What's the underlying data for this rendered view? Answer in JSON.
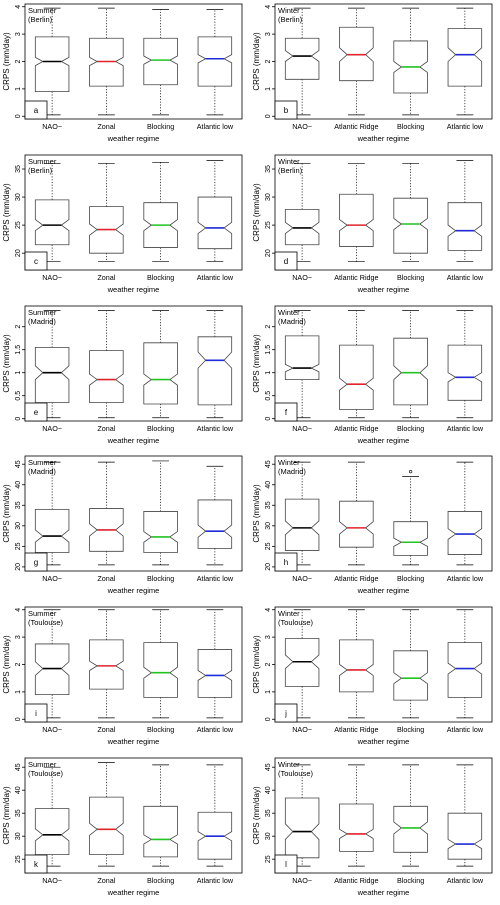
{
  "colors": {
    "median_default": "#000000",
    "median_red": "#e0242a",
    "median_green": "#22c322",
    "median_blue": "#1f2bd6",
    "box_stroke": "#444444"
  },
  "chart_data": [
    {
      "type": "boxplot",
      "panel": "a",
      "title": "Summer\n(Berlin)",
      "xlabel": "weather regime",
      "ylabel": "CRPS (mm/day)",
      "yticks": [
        0,
        1,
        2,
        3,
        4
      ],
      "ylim": [
        -0.1,
        4.1
      ],
      "categories": [
        "NAO−",
        "Zonal",
        "Blocking",
        "Atlantic low"
      ],
      "median_colors": [
        "black",
        "red",
        "green",
        "blue"
      ],
      "boxes": [
        {
          "min": 0.05,
          "q1": 0.9,
          "notch_lo": 1.85,
          "median": 2.0,
          "notch_hi": 2.15,
          "q3": 2.9,
          "max": 3.95
        },
        {
          "min": 0.05,
          "q1": 1.1,
          "notch_lo": 1.85,
          "median": 2.0,
          "notch_hi": 2.15,
          "q3": 2.85,
          "max": 3.95
        },
        {
          "min": 0.05,
          "q1": 1.15,
          "notch_lo": 1.9,
          "median": 2.05,
          "notch_hi": 2.2,
          "q3": 2.85,
          "max": 3.9
        },
        {
          "min": 0.05,
          "q1": 1.1,
          "notch_lo": 1.95,
          "median": 2.1,
          "notch_hi": 2.25,
          "q3": 2.9,
          "max": 3.9
        }
      ]
    },
    {
      "type": "boxplot",
      "panel": "b",
      "title": "Winter\n(Berlin)",
      "xlabel": "weather regime",
      "ylabel": "CRPS (mm/day)",
      "yticks": [
        0,
        1,
        2,
        3,
        4
      ],
      "ylim": [
        -0.1,
        4.1
      ],
      "categories": [
        "NAO−",
        "Atlantic Ridge",
        "Blocking",
        "Atlantic low"
      ],
      "median_colors": [
        "black",
        "red",
        "green",
        "blue"
      ],
      "boxes": [
        {
          "min": 0.05,
          "q1": 1.35,
          "notch_lo": 2.0,
          "median": 2.2,
          "notch_hi": 2.4,
          "q3": 2.85,
          "max": 3.95
        },
        {
          "min": 0.05,
          "q1": 1.3,
          "notch_lo": 2.0,
          "median": 2.25,
          "notch_hi": 2.5,
          "q3": 3.25,
          "max": 3.95
        },
        {
          "min": 0.05,
          "q1": 0.85,
          "notch_lo": 1.6,
          "median": 1.8,
          "notch_hi": 2.0,
          "q3": 2.75,
          "max": 3.95
        },
        {
          "min": 0.05,
          "q1": 1.1,
          "notch_lo": 2.0,
          "median": 2.25,
          "notch_hi": 2.5,
          "q3": 3.2,
          "max": 3.95
        }
      ]
    },
    {
      "type": "boxplot",
      "panel": "c",
      "title": "Summer\n(Berlin)",
      "xlabel": "weather regime",
      "ylabel": "CRPS (mm/day)",
      "yticks": [
        20,
        25,
        30,
        35
      ],
      "ylim": [
        17,
        37.5
      ],
      "categories": [
        "NAO−",
        "Zonal",
        "Blocking",
        "Atlantic low"
      ],
      "median_colors": [
        "black",
        "red",
        "green",
        "blue"
      ],
      "boxes": [
        {
          "min": 18.5,
          "q1": 21.5,
          "notch_lo": 24.0,
          "median": 25.0,
          "notch_hi": 26.0,
          "q3": 29.5,
          "max": 36.0
        },
        {
          "min": 18.5,
          "q1": 20.0,
          "notch_lo": 23.2,
          "median": 24.2,
          "notch_hi": 25.2,
          "q3": 28.3,
          "max": 36.0
        },
        {
          "min": 18.5,
          "q1": 21.0,
          "notch_lo": 24.0,
          "median": 25.0,
          "notch_hi": 26.0,
          "q3": 29.0,
          "max": 36.2
        },
        {
          "min": 18.5,
          "q1": 20.8,
          "notch_lo": 23.5,
          "median": 24.5,
          "notch_hi": 25.5,
          "q3": 30.0,
          "max": 36.5
        }
      ]
    },
    {
      "type": "boxplot",
      "panel": "d",
      "title": "Winter\n(Berlin)",
      "xlabel": "weather regime",
      "ylabel": "CRPS (mm/day)",
      "yticks": [
        20,
        25,
        30,
        35
      ],
      "ylim": [
        17,
        37.5
      ],
      "categories": [
        "NAO−",
        "Atlantic Ridge",
        "Blocking",
        "Atlantic low"
      ],
      "median_colors": [
        "black",
        "red",
        "green",
        "blue"
      ],
      "boxes": [
        {
          "min": 18.5,
          "q1": 21.5,
          "notch_lo": 23.5,
          "median": 24.5,
          "notch_hi": 25.5,
          "q3": 27.8,
          "max": 36.0
        },
        {
          "min": 18.5,
          "q1": 21.2,
          "notch_lo": 24.0,
          "median": 25.0,
          "notch_hi": 26.0,
          "q3": 30.5,
          "max": 36.0
        },
        {
          "min": 18.5,
          "q1": 20.0,
          "notch_lo": 24.2,
          "median": 25.2,
          "notch_hi": 26.2,
          "q3": 29.8,
          "max": 36.0
        },
        {
          "min": 18.5,
          "q1": 20.5,
          "notch_lo": 23.0,
          "median": 24.0,
          "notch_hi": 25.0,
          "q3": 29.0,
          "max": 36.5
        }
      ]
    },
    {
      "type": "boxplot",
      "panel": "e",
      "title": "Summer\n(Madrid)",
      "xlabel": "weather regime",
      "ylabel": "CRPS (mm/day)",
      "yticks": [
        0,
        0.5,
        1.0,
        1.5,
        2.0
      ],
      "ylim": [
        -0.05,
        2.45
      ],
      "categories": [
        "NAO−",
        "Zonal",
        "Blocking",
        "Atlantic low"
      ],
      "median_colors": [
        "black",
        "red",
        "green",
        "blue"
      ],
      "boxes": [
        {
          "min": 0.02,
          "q1": 0.35,
          "notch_lo": 0.85,
          "median": 1.0,
          "notch_hi": 1.15,
          "q3": 1.55,
          "max": 2.35
        },
        {
          "min": 0.02,
          "q1": 0.35,
          "notch_lo": 0.73,
          "median": 0.85,
          "notch_hi": 0.97,
          "q3": 1.48,
          "max": 2.35
        },
        {
          "min": 0.02,
          "q1": 0.32,
          "notch_lo": 0.73,
          "median": 0.85,
          "notch_hi": 0.97,
          "q3": 1.65,
          "max": 2.35
        },
        {
          "min": 0.02,
          "q1": 0.3,
          "notch_lo": 1.1,
          "median": 1.27,
          "notch_hi": 1.45,
          "q3": 1.78,
          "max": 2.35
        }
      ]
    },
    {
      "type": "boxplot",
      "panel": "f",
      "title": "Winter\n(Madrid)",
      "xlabel": "weather regime",
      "ylabel": "CRPS (mm/day)",
      "yticks": [
        0,
        0.5,
        1.0,
        1.5,
        2.0
      ],
      "ylim": [
        -0.05,
        2.45
      ],
      "categories": [
        "NAO−",
        "Atlantic Ridge",
        "Blocking",
        "Atlantic low"
      ],
      "median_colors": [
        "black",
        "red",
        "green",
        "blue"
      ],
      "boxes": [
        {
          "min": 0.02,
          "q1": 0.85,
          "notch_lo": 1.02,
          "median": 1.1,
          "notch_hi": 1.18,
          "q3": 1.8,
          "max": 2.35
        },
        {
          "min": 0.02,
          "q1": 0.2,
          "notch_lo": 0.62,
          "median": 0.75,
          "notch_hi": 0.88,
          "q3": 1.6,
          "max": 2.35
        },
        {
          "min": 0.02,
          "q1": 0.3,
          "notch_lo": 0.85,
          "median": 1.0,
          "notch_hi": 1.15,
          "q3": 1.75,
          "max": 2.35
        },
        {
          "min": 0.02,
          "q1": 0.4,
          "notch_lo": 0.8,
          "median": 0.9,
          "notch_hi": 1.0,
          "q3": 1.6,
          "max": 2.35
        }
      ]
    },
    {
      "type": "boxplot",
      "panel": "g",
      "title": "Summer\n(Madrid)",
      "xlabel": "weather regime",
      "ylabel": "CRPS (mm/day)",
      "yticks": [
        20,
        25,
        30,
        35,
        40,
        45
      ],
      "ylim": [
        19,
        47
      ],
      "categories": [
        "NAO−",
        "Zonal",
        "Blocking",
        "Atlantic low"
      ],
      "median_colors": [
        "black",
        "red",
        "green",
        "blue"
      ],
      "boxes": [
        {
          "min": 20.5,
          "q1": 23.5,
          "notch_lo": 26.0,
          "median": 27.5,
          "notch_hi": 29.0,
          "q3": 34.0,
          "max": 45.5
        },
        {
          "min": 20.5,
          "q1": 23.8,
          "notch_lo": 27.5,
          "median": 29.0,
          "notch_hi": 30.5,
          "q3": 34.2,
          "max": 45.5
        },
        {
          "min": 20.5,
          "q1": 23.5,
          "notch_lo": 26.0,
          "median": 27.3,
          "notch_hi": 28.6,
          "q3": 33.5,
          "max": 45.8
        },
        {
          "min": 20.5,
          "q1": 24.5,
          "notch_lo": 27.2,
          "median": 28.7,
          "notch_hi": 30.2,
          "q3": 36.3,
          "max": 44.5
        }
      ]
    },
    {
      "type": "boxplot",
      "panel": "h",
      "title": "Winter\n(Madrid)",
      "xlabel": "weather regime",
      "ylabel": "CRPS (mm/day)",
      "yticks": [
        20,
        25,
        30,
        35,
        40,
        45
      ],
      "ylim": [
        19,
        47
      ],
      "categories": [
        "NAO−",
        "Atlantic Ridge",
        "Blocking",
        "Atlantic low"
      ],
      "median_colors": [
        "black",
        "red",
        "green",
        "blue"
      ],
      "outliers": [
        [],
        [],
        [
          43.2
        ],
        []
      ],
      "boxes": [
        {
          "min": 20.5,
          "q1": 24.0,
          "notch_lo": 27.8,
          "median": 29.5,
          "notch_hi": 31.2,
          "q3": 36.5,
          "max": 45.5
        },
        {
          "min": 20.5,
          "q1": 24.8,
          "notch_lo": 28.0,
          "median": 29.5,
          "notch_hi": 31.0,
          "q3": 36.0,
          "max": 45.5
        },
        {
          "min": 20.5,
          "q1": 22.8,
          "notch_lo": 25.0,
          "median": 26.0,
          "notch_hi": 27.0,
          "q3": 31.0,
          "max": 42.0
        },
        {
          "min": 20.5,
          "q1": 23.0,
          "notch_lo": 26.7,
          "median": 28.0,
          "notch_hi": 29.3,
          "q3": 33.5,
          "max": 45.5
        }
      ]
    },
    {
      "type": "boxplot",
      "panel": "i",
      "title": "Summer\n(Toulouse)",
      "xlabel": "weather regime",
      "ylabel": "CRPS (mm/day)",
      "yticks": [
        0,
        1,
        2,
        3,
        4
      ],
      "ylim": [
        -0.1,
        4.1
      ],
      "categories": [
        "NAO−",
        "Zonal",
        "Blocking",
        "Atlantic low"
      ],
      "median_colors": [
        "black",
        "red",
        "green",
        "blue"
      ],
      "boxes": [
        {
          "min": 0.05,
          "q1": 0.9,
          "notch_lo": 1.6,
          "median": 1.85,
          "notch_hi": 2.1,
          "q3": 2.75,
          "max": 4.0
        },
        {
          "min": 0.05,
          "q1": 1.1,
          "notch_lo": 1.78,
          "median": 1.95,
          "notch_hi": 2.12,
          "q3": 2.9,
          "max": 4.0
        },
        {
          "min": 0.05,
          "q1": 0.8,
          "notch_lo": 1.5,
          "median": 1.7,
          "notch_hi": 1.9,
          "q3": 2.8,
          "max": 4.0
        },
        {
          "min": 0.05,
          "q1": 0.8,
          "notch_lo": 1.42,
          "median": 1.6,
          "notch_hi": 1.78,
          "q3": 2.55,
          "max": 4.0
        }
      ]
    },
    {
      "type": "boxplot",
      "panel": "j",
      "title": "Winter\n(Toulouse)",
      "xlabel": "weather regime",
      "ylabel": "CRPS (mm/day)",
      "yticks": [
        0,
        1,
        2,
        3,
        4
      ],
      "ylim": [
        -0.1,
        4.1
      ],
      "categories": [
        "NAO−",
        "Atlantic Ridge",
        "Blocking",
        "Atlantic low"
      ],
      "median_colors": [
        "black",
        "red",
        "green",
        "blue"
      ],
      "boxes": [
        {
          "min": 0.05,
          "q1": 1.2,
          "notch_lo": 1.85,
          "median": 2.1,
          "notch_hi": 2.35,
          "q3": 2.95,
          "max": 4.0
        },
        {
          "min": 0.05,
          "q1": 1.0,
          "notch_lo": 1.6,
          "median": 1.8,
          "notch_hi": 2.0,
          "q3": 2.9,
          "max": 4.0
        },
        {
          "min": 0.05,
          "q1": 0.7,
          "notch_lo": 1.3,
          "median": 1.5,
          "notch_hi": 1.7,
          "q3": 2.5,
          "max": 4.0
        },
        {
          "min": 0.05,
          "q1": 0.8,
          "notch_lo": 1.65,
          "median": 1.85,
          "notch_hi": 2.05,
          "q3": 2.8,
          "max": 4.0
        }
      ]
    },
    {
      "type": "boxplot",
      "panel": "k",
      "title": "Summer\n(Toulouse)",
      "xlabel": "weather regime",
      "ylabel": "CRPS (mm/day)",
      "yticks": [
        25,
        30,
        35,
        40,
        45
      ],
      "ylim": [
        22,
        47
      ],
      "categories": [
        "NAO−",
        "Zonal",
        "Blocking",
        "Atlantic low"
      ],
      "median_colors": [
        "black",
        "red",
        "green",
        "blue"
      ],
      "boxes": [
        {
          "min": 23.5,
          "q1": 26.0,
          "notch_lo": 29.0,
          "median": 30.3,
          "notch_hi": 31.6,
          "q3": 36.0,
          "max": 45.0
        },
        {
          "min": 23.5,
          "q1": 26.0,
          "notch_lo": 30.2,
          "median": 31.5,
          "notch_hi": 32.8,
          "q3": 38.5,
          "max": 46.0
        },
        {
          "min": 23.5,
          "q1": 25.5,
          "notch_lo": 28.3,
          "median": 29.3,
          "notch_hi": 30.3,
          "q3": 36.5,
          "max": 45.5
        },
        {
          "min": 23.5,
          "q1": 25.0,
          "notch_lo": 29.0,
          "median": 30.0,
          "notch_hi": 31.0,
          "q3": 35.2,
          "max": 45.5
        }
      ]
    },
    {
      "type": "boxplot",
      "panel": "l",
      "title": "Winter\n(Toulouse)",
      "xlabel": "weather regime",
      "ylabel": "CRPS (mm/day)",
      "yticks": [
        25,
        30,
        35,
        40,
        45
      ],
      "ylim": [
        22,
        47
      ],
      "categories": [
        "NAO−",
        "Atlantic Ridge",
        "Blocking",
        "Atlantic low"
      ],
      "median_colors": [
        "black",
        "red",
        "green",
        "blue"
      ],
      "boxes": [
        {
          "min": 23.5,
          "q1": 25.3,
          "notch_lo": 29.3,
          "median": 31.0,
          "notch_hi": 32.7,
          "q3": 38.3,
          "max": 45.5
        },
        {
          "min": 23.5,
          "q1": 26.7,
          "notch_lo": 29.5,
          "median": 30.5,
          "notch_hi": 31.5,
          "q3": 37.0,
          "max": 45.5
        },
        {
          "min": 23.5,
          "q1": 26.5,
          "notch_lo": 30.5,
          "median": 31.8,
          "notch_hi": 33.1,
          "q3": 36.5,
          "max": 45.5
        },
        {
          "min": 23.5,
          "q1": 25.0,
          "notch_lo": 27.3,
          "median": 28.3,
          "notch_hi": 29.3,
          "q3": 35.0,
          "max": 45.5
        }
      ]
    }
  ]
}
